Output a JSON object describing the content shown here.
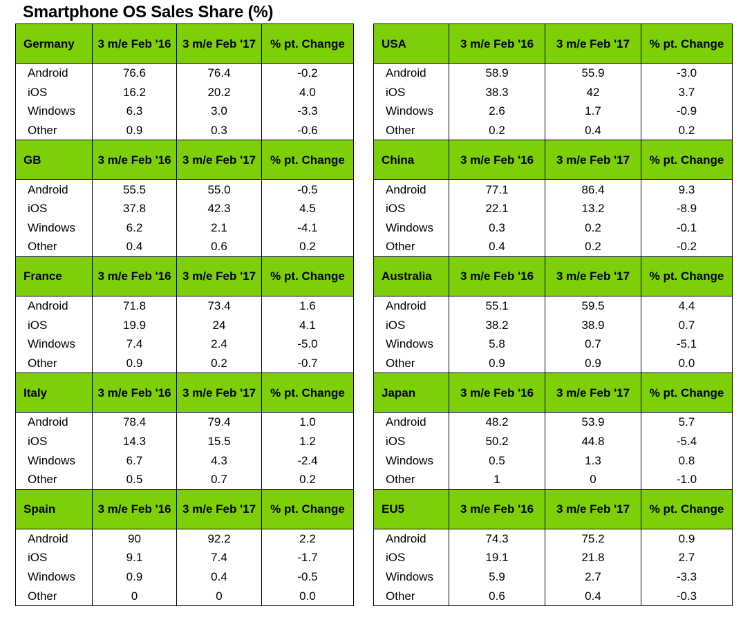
{
  "title": "Smartphone OS Sales Share (%)",
  "chart_data": {
    "type": "table",
    "title": "Smartphone OS Sales Share (%)",
    "panels": [
      {
        "column_widths": [
          111,
          122,
          123,
          133
        ],
        "regions": [
          {
            "name": "Germany",
            "headers": [
              "3 m/e Feb '16",
              "3 m/e Feb '17",
              "% pt. Change"
            ],
            "rows": [
              {
                "os": "Android",
                "values": [
                  "76.6",
                  "76.4",
                  "-0.2"
                ]
              },
              {
                "os": "iOS",
                "values": [
                  "16.2",
                  "20.2",
                  "4.0"
                ]
              },
              {
                "os": "Windows",
                "values": [
                  "6.3",
                  "3.0",
                  "-3.3"
                ]
              },
              {
                "os": "Other",
                "values": [
                  "0.9",
                  "0.3",
                  "-0.6"
                ]
              }
            ]
          },
          {
            "name": "GB",
            "headers": [
              "3 m/e Feb '16",
              "3 m/e Feb '17",
              "% pt. Change"
            ],
            "rows": [
              {
                "os": "Android",
                "values": [
                  "55.5",
                  "55.0",
                  "-0.5"
                ]
              },
              {
                "os": "iOS",
                "values": [
                  "37.8",
                  "42.3",
                  "4.5"
                ]
              },
              {
                "os": "Windows",
                "values": [
                  "6.2",
                  "2.1",
                  "-4.1"
                ]
              },
              {
                "os": "Other",
                "values": [
                  "0.4",
                  "0.6",
                  "0.2"
                ]
              }
            ]
          },
          {
            "name": "France",
            "headers": [
              "3 m/e Feb '16",
              "3 m/e Feb '17",
              "% pt. Change"
            ],
            "rows": [
              {
                "os": "Android",
                "values": [
                  "71.8",
                  "73.4",
                  "1.6"
                ]
              },
              {
                "os": "iOS",
                "values": [
                  "19.9",
                  "24",
                  "4.1"
                ]
              },
              {
                "os": "Windows",
                "values": [
                  "7.4",
                  "2.4",
                  "-5.0"
                ]
              },
              {
                "os": "Other",
                "values": [
                  "0.9",
                  "0.2",
                  "-0.7"
                ]
              }
            ]
          },
          {
            "name": "Italy",
            "headers": [
              "3 m/e Feb '16",
              "3 m/e Feb '17",
              "% pt. Change"
            ],
            "rows": [
              {
                "os": "Android",
                "values": [
                  "78.4",
                  "79.4",
                  "1.0"
                ]
              },
              {
                "os": "iOS",
                "values": [
                  "14.3",
                  "15.5",
                  "1.2"
                ]
              },
              {
                "os": "Windows",
                "values": [
                  "6.7",
                  "4.3",
                  "-2.4"
                ]
              },
              {
                "os": "Other",
                "values": [
                  "0.5",
                  "0.7",
                  "0.2"
                ]
              }
            ]
          },
          {
            "name": "Spain",
            "headers": [
              "3 m/e Feb '16",
              "3 m/e Feb '17",
              "% pt. Change"
            ],
            "rows": [
              {
                "os": "Android",
                "values": [
                  "90",
                  "92.2",
                  "2.2"
                ]
              },
              {
                "os": "iOS",
                "values": [
                  "9.1",
                  "7.4",
                  "-1.7"
                ]
              },
              {
                "os": "Windows",
                "values": [
                  "0.9",
                  "0.4",
                  "-0.5"
                ]
              },
              {
                "os": "Other",
                "values": [
                  "0",
                  "0",
                  "0.0"
                ]
              }
            ]
          }
        ]
      },
      {
        "column_widths": [
          109,
          139,
          139,
          132
        ],
        "regions": [
          {
            "name": "USA",
            "headers": [
              "3 m/e Feb '16",
              "3 m/e Feb '17",
              "% pt. Change"
            ],
            "rows": [
              {
                "os": "Android",
                "values": [
                  "58.9",
                  "55.9",
                  "-3.0"
                ]
              },
              {
                "os": "iOS",
                "values": [
                  "38.3",
                  "42",
                  "3.7"
                ]
              },
              {
                "os": "Windows",
                "values": [
                  "2.6",
                  "1.7",
                  "-0.9"
                ]
              },
              {
                "os": "Other",
                "values": [
                  "0.2",
                  "0.4",
                  "0.2"
                ]
              }
            ]
          },
          {
            "name": "China",
            "headers": [
              "3 m/e Feb '16",
              "3 m/e Feb '17",
              "% pt. Change"
            ],
            "rows": [
              {
                "os": "Android",
                "values": [
                  "77.1",
                  "86.4",
                  "9.3"
                ]
              },
              {
                "os": "iOS",
                "values": [
                  "22.1",
                  "13.2",
                  "-8.9"
                ]
              },
              {
                "os": "Windows",
                "values": [
                  "0.3",
                  "0.2",
                  "-0.1"
                ]
              },
              {
                "os": "Other",
                "values": [
                  "0.4",
                  "0.2",
                  "-0.2"
                ]
              }
            ]
          },
          {
            "name": "Australia",
            "headers": [
              "3 m/e Feb '16",
              "3 m/e Feb '17",
              "% pt. Change"
            ],
            "rows": [
              {
                "os": "Android",
                "values": [
                  "55.1",
                  "59.5",
                  "4.4"
                ]
              },
              {
                "os": "iOS",
                "values": [
                  "38.2",
                  "38.9",
                  "0.7"
                ]
              },
              {
                "os": "Windows",
                "values": [
                  "5.8",
                  "0.7",
                  "-5.1"
                ]
              },
              {
                "os": "Other",
                "values": [
                  "0.9",
                  "0.9",
                  "0.0"
                ]
              }
            ]
          },
          {
            "name": "Japan",
            "headers": [
              "3 m/e Feb '16",
              "3 m/e Feb '17",
              "% pt. Change"
            ],
            "rows": [
              {
                "os": "Android",
                "values": [
                  "48.2",
                  "53.9",
                  "5.7"
                ]
              },
              {
                "os": "iOS",
                "values": [
                  "50.2",
                  "44.8",
                  "-5.4"
                ]
              },
              {
                "os": "Windows",
                "values": [
                  "0.5",
                  "1.3",
                  "0.8"
                ]
              },
              {
                "os": "Other",
                "values": [
                  "1",
                  "0",
                  "-1.0"
                ]
              }
            ]
          },
          {
            "name": "EU5",
            "headers": [
              "3 m/e Feb '16",
              "3 m/e Feb '17",
              "% pt. Change"
            ],
            "rows": [
              {
                "os": "Android",
                "values": [
                  "74.3",
                  "75.2",
                  "0.9"
                ]
              },
              {
                "os": "iOS",
                "values": [
                  "19.1",
                  "21.8",
                  "2.7"
                ]
              },
              {
                "os": "Windows",
                "values": [
                  "5.9",
                  "2.7",
                  "-3.3"
                ]
              },
              {
                "os": "Other",
                "values": [
                  "0.6",
                  "0.4",
                  "-0.3"
                ]
              }
            ]
          }
        ]
      }
    ]
  }
}
